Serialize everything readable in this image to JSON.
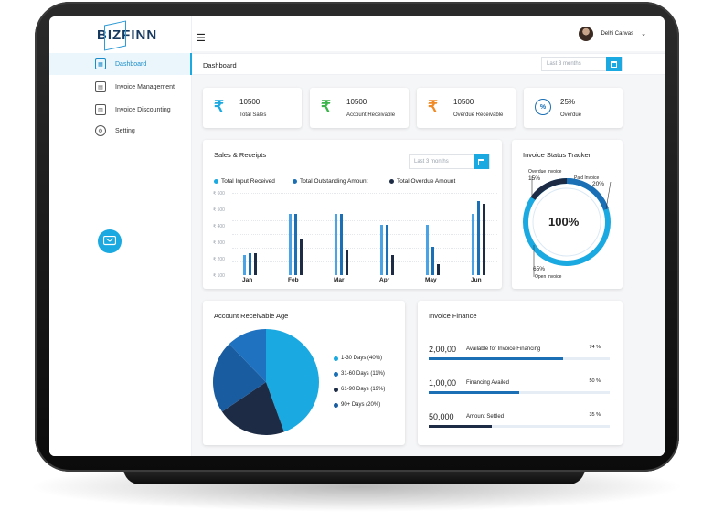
{
  "brand": {
    "logo_text": "BIZFINN"
  },
  "colors": {
    "accent": "#1aa9e0",
    "blue": "#1a6fb5",
    "navy": "#1d2b45",
    "light": "#4aa3e4"
  },
  "user": {
    "name": "Delhi Canvas"
  },
  "sidebar": {
    "items": [
      {
        "label": "Dashboard",
        "icon": "dashboard-icon",
        "active": true
      },
      {
        "label": "Invoice Management",
        "icon": "invoice-icon",
        "active": false
      },
      {
        "label": "Invoice Discounting",
        "icon": "discount-icon",
        "active": false
      },
      {
        "label": "Setting",
        "icon": "gear-icon",
        "active": false
      }
    ]
  },
  "header": {
    "title": "Dashboard",
    "range_placeholder": "Last 3 months"
  },
  "stats": [
    {
      "value": "10500",
      "label": "Total Sales",
      "symbol": "₹",
      "color": "#1aa9e0"
    },
    {
      "value": "10500",
      "label": "Account Receivable",
      "symbol": "₹",
      "color": "#3ab54a"
    },
    {
      "value": "10500",
      "label": "Overdue Receivable",
      "symbol": "₹",
      "color": "#f08a24"
    },
    {
      "value": "25%",
      "label": "Overdue",
      "symbol": "%",
      "color": "#1a6fb5"
    }
  ],
  "sales": {
    "title": "Sales & Receipts",
    "range_placeholder": "Last 3 months",
    "legend": [
      "Total Input Received",
      "Total Outstanding Amount",
      "Total Overdue Amount"
    ],
    "ticks": [
      "₹ 600",
      "₹ 500",
      "₹ 400",
      "₹ 300",
      "₹ 200",
      "₹ 100"
    ]
  },
  "chart_data": [
    {
      "type": "bar",
      "title": "Sales & Receipts",
      "categories": [
        "Jan",
        "Feb",
        "Mar",
        "Apr",
        "May",
        "Jun"
      ],
      "ylim": [
        0,
        600
      ],
      "series": [
        {
          "name": "Total Input Received",
          "values": [
            150,
            450,
            450,
            370,
            370,
            450
          ]
        },
        {
          "name": "Total Outstanding Amount",
          "values": [
            160,
            450,
            450,
            370,
            210,
            540
          ]
        },
        {
          "name": "Total Overdue Amount",
          "values": [
            160,
            260,
            190,
            150,
            80,
            520
          ]
        }
      ]
    },
    {
      "type": "pie",
      "title": "Account Receivable Age",
      "categories": [
        "1-30 Days (40%)",
        "31-60 Days (11%)",
        "61-90 Days (19%)",
        "90+ Days (20%)"
      ],
      "values": [
        40,
        11,
        19,
        20
      ]
    }
  ],
  "tracker": {
    "title": "Invoice Status Tracker",
    "center": "100%",
    "overdue_label": "Overdue Invoice",
    "overdue_pct": "15%",
    "paid_label": "Paid Invoice",
    "paid_pct": "20%",
    "open_label": "Open Invoice",
    "open_pct": "65%"
  },
  "age": {
    "title": "Account Receivable Age",
    "legend": [
      "1-30 Days (40%)",
      "31-60 Days (11%)",
      "61-90 Days (19%)",
      "90+ Days (20%)"
    ]
  },
  "finance": {
    "title": "Invoice Finance",
    "rows": [
      {
        "value": "2,00,00",
        "label": "Available for Invoice Financing",
        "pct": "74 %",
        "fraction": 0.74
      },
      {
        "value": "1,00,00",
        "label": "Financing Availed",
        "pct": "50 %",
        "fraction": 0.5
      },
      {
        "value": "50,000",
        "label": "Amount Settled",
        "pct": "35 %",
        "fraction": 0.35
      }
    ]
  }
}
